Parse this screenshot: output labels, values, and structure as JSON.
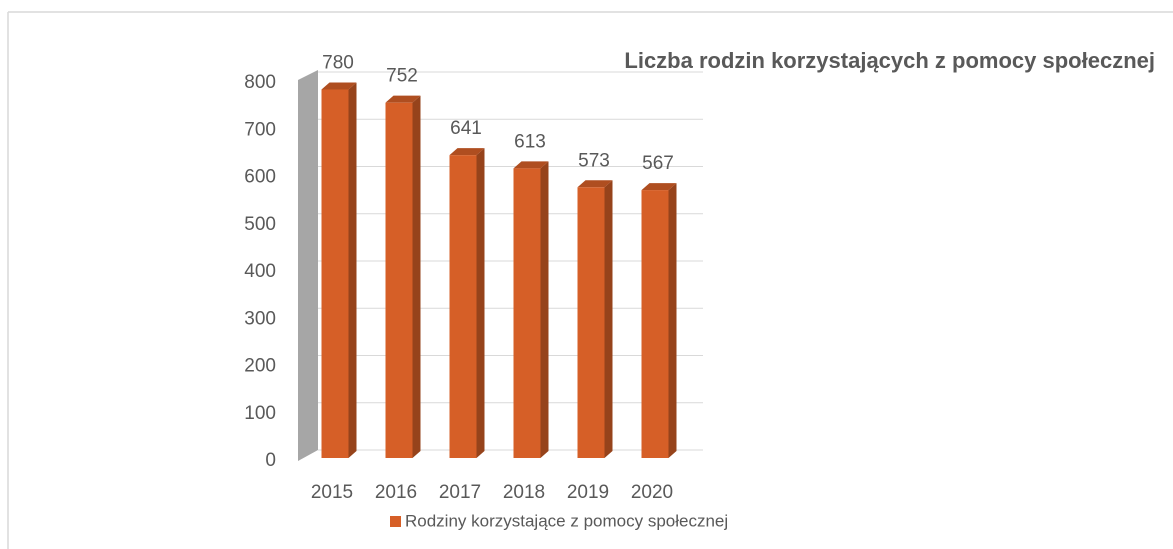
{
  "chart_data": {
    "type": "bar3d",
    "title": "Liczba rodzin korzystających z pomocy społecznej",
    "categories": [
      "2015",
      "2016",
      "2017",
      "2018",
      "2019",
      "2020"
    ],
    "series": [
      {
        "name": "Rodziny korzystające z pomocy społecznej",
        "color": "#d65f27",
        "values": [
          780,
          752,
          641,
          613,
          573,
          567
        ]
      }
    ],
    "ylim": [
      0,
      800
    ],
    "yticks": [
      0,
      100,
      200,
      300,
      400,
      500,
      600,
      700,
      800
    ],
    "grid": true,
    "legend": "bottom",
    "data_labels": true
  }
}
